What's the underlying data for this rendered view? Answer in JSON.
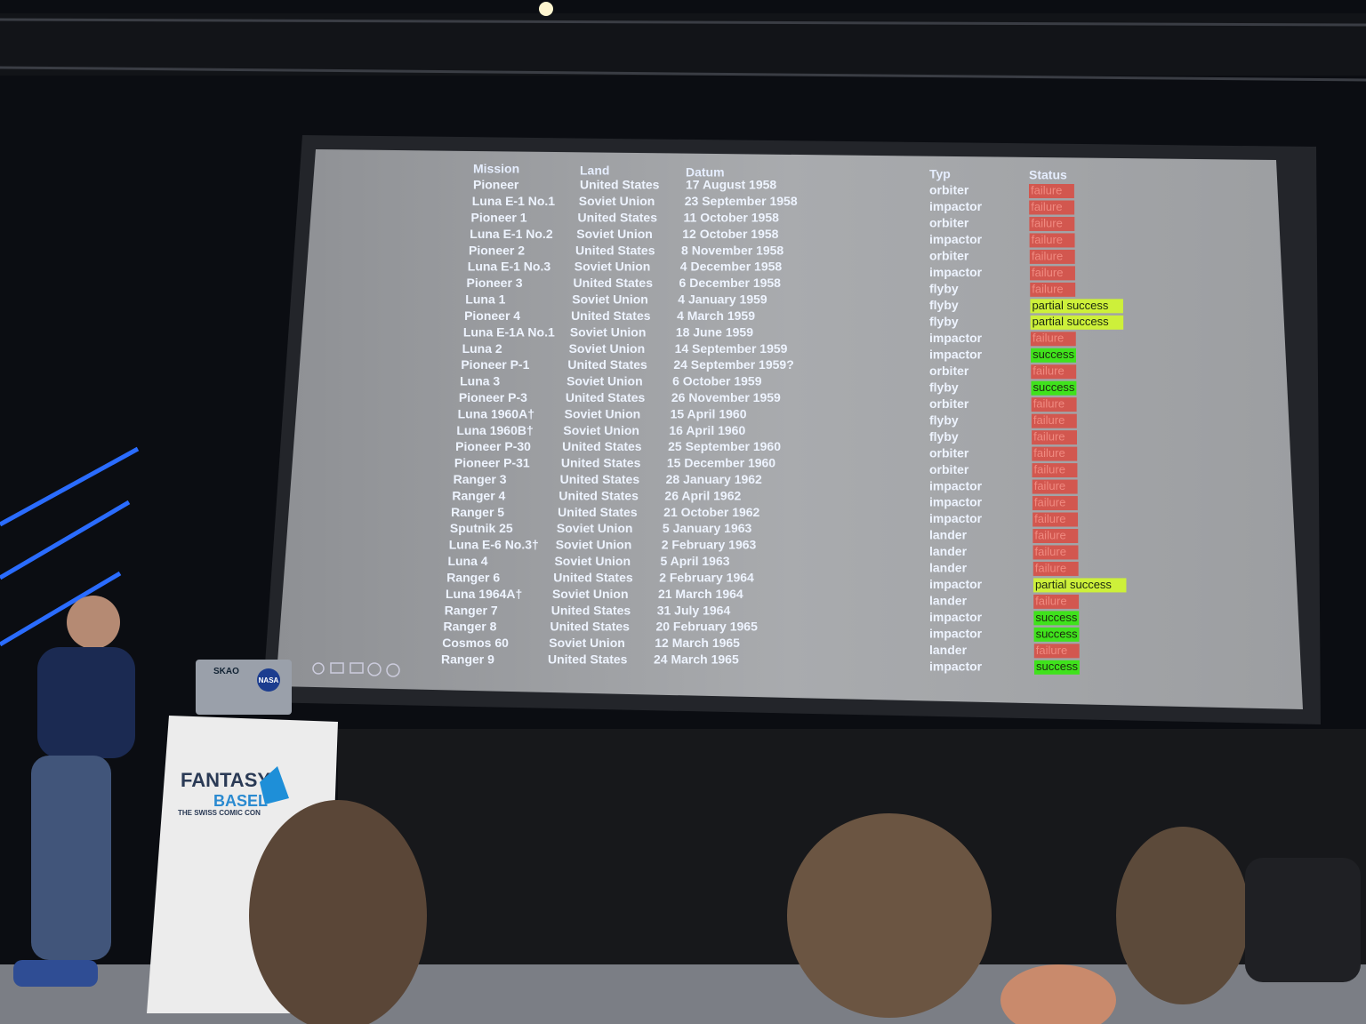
{
  "table": {
    "header": [
      "Mission",
      "Land",
      "Datum",
      "Typ",
      "Status"
    ],
    "status_colors": {
      "failure": "#d2574f",
      "partial success": "#cdf03a",
      "success": "#3fe21c"
    },
    "rows": [
      [
        "Pioneer",
        "United States",
        "17 August 1958",
        "orbiter",
        "failure"
      ],
      [
        "Luna E-1 No.1",
        "Soviet Union",
        "23 September 1958",
        "impactor",
        "failure"
      ],
      [
        "Pioneer 1",
        "United States",
        "11 October 1958",
        "orbiter",
        "failure"
      ],
      [
        "Luna E-1 No.2",
        "Soviet Union",
        "12 October 1958",
        "impactor",
        "failure"
      ],
      [
        "Pioneer 2",
        "United States",
        "8 November 1958",
        "orbiter",
        "failure"
      ],
      [
        "Luna E-1 No.3",
        "Soviet Union",
        "4 December 1958",
        "impactor",
        "failure"
      ],
      [
        "Pioneer 3",
        "United States",
        "6 December 1958",
        "flyby",
        "failure"
      ],
      [
        "Luna 1",
        "Soviet Union",
        "4 January 1959",
        "flyby",
        "partial success"
      ],
      [
        "Pioneer 4",
        "United States",
        "4 March 1959",
        "flyby",
        "partial success"
      ],
      [
        "Luna E-1A No.1",
        "Soviet Union",
        "18 June 1959",
        "impactor",
        "failure"
      ],
      [
        "Luna 2",
        "Soviet Union",
        "14 September 1959",
        "impactor",
        "success"
      ],
      [
        "Pioneer P-1",
        "United States",
        "24 September 1959?",
        "orbiter",
        "failure"
      ],
      [
        "Luna 3",
        "Soviet Union",
        "6 October 1959",
        "flyby",
        "success"
      ],
      [
        "Pioneer P-3",
        "United States",
        "26 November 1959",
        "orbiter",
        "failure"
      ],
      [
        "Luna 1960A†",
        "Soviet Union",
        "15 April 1960",
        "flyby",
        "failure"
      ],
      [
        "Luna 1960B†",
        "Soviet Union",
        "16 April 1960",
        "flyby",
        "failure"
      ],
      [
        "Pioneer P-30",
        "United States",
        "25 September 1960",
        "orbiter",
        "failure"
      ],
      [
        "Pioneer P-31",
        "United States",
        "15 December 1960",
        "orbiter",
        "failure"
      ],
      [
        "Ranger 3",
        "United States",
        "28 January 1962",
        "impactor",
        "failure"
      ],
      [
        "Ranger 4",
        "United States",
        "26 April 1962",
        "impactor",
        "failure"
      ],
      [
        "Ranger 5",
        "United States",
        "21 October 1962",
        "impactor",
        "failure"
      ],
      [
        "Sputnik 25",
        "Soviet Union",
        "5 January 1963",
        "lander",
        "failure"
      ],
      [
        "Luna E-6 No.3†",
        "Soviet Union",
        "2 February 1963",
        "lander",
        "failure"
      ],
      [
        "Luna 4",
        "Soviet Union",
        "5 April 1963",
        "lander",
        "failure"
      ],
      [
        "Ranger 6",
        "United States",
        "2 February 1964",
        "impactor",
        "partial success"
      ],
      [
        "Luna 1964A†",
        "Soviet Union",
        "21 March 1964",
        "lander",
        "failure"
      ],
      [
        "Ranger 7",
        "United States",
        "31 July 1964",
        "impactor",
        "success"
      ],
      [
        "Ranger 8",
        "United States",
        "20 February 1965",
        "impactor",
        "success"
      ],
      [
        "Cosmos 60",
        "Soviet Union",
        "12 March 1965",
        "lander",
        "failure"
      ],
      [
        "Ranger 9",
        "United States",
        "24 March 1965",
        "impactor",
        "success"
      ]
    ]
  },
  "podium": {
    "brand": "FANTASY",
    "city": "BASEL",
    "tagline": "THE SWISS COMIC CON"
  },
  "laptop": {
    "stickers": [
      "SKAO",
      "NASA"
    ]
  }
}
